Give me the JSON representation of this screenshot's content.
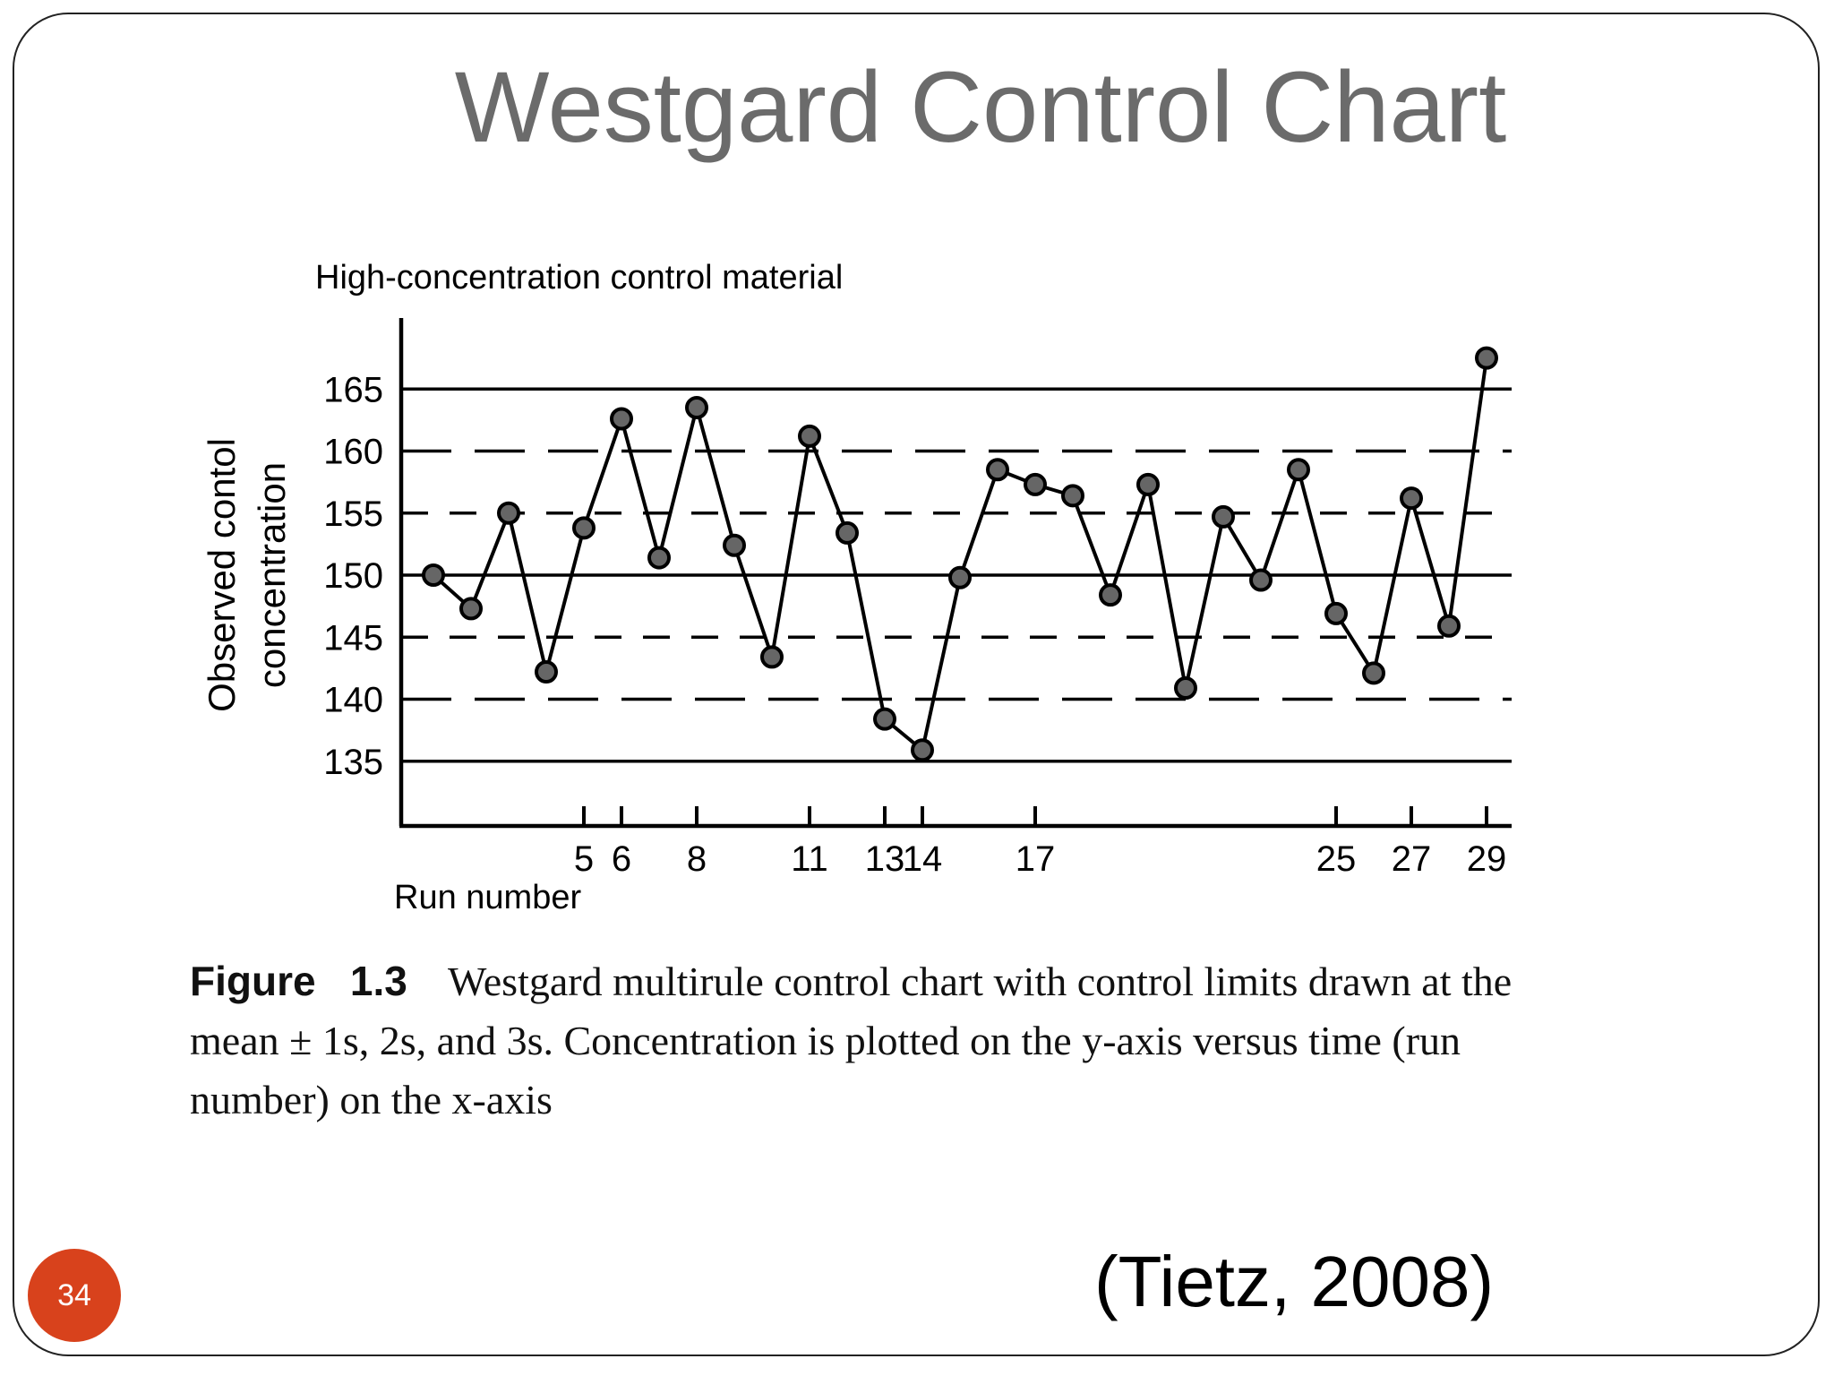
{
  "slide": {
    "title": "Westgard Control Chart",
    "number": "34",
    "citation": "(Tietz, 2008)",
    "accent_color": "#d8421c",
    "title_color": "#6b6b6b"
  },
  "caption": {
    "label": "Figure   1.3",
    "text": "Westgard multirule control chart with control limits drawn at the mean ± 1s, 2s, and 3s. Concentration is plotted on the y-axis versus time (run number) on the x-axis"
  },
  "chart_data": {
    "type": "line",
    "title": "High-concentration control material",
    "ylabel": "Observed contol concentration",
    "xlabel": "Run number",
    "ylim": [
      130,
      170
    ],
    "xlim": [
      0,
      30
    ],
    "yticks": [
      135,
      140,
      145,
      150,
      155,
      160,
      165
    ],
    "xticks": [
      5,
      6,
      8,
      11,
      13,
      14,
      17,
      25,
      27,
      29
    ],
    "x_tick_labels": [
      "5",
      "6",
      "8",
      "11",
      "13",
      "14",
      "17",
      "25",
      "27",
      "29"
    ],
    "mean": 150,
    "control_limits": [
      {
        "value": 165,
        "style": "solid"
      },
      {
        "value": 160,
        "style": "long-dash"
      },
      {
        "value": 155,
        "style": "short-dash"
      },
      {
        "value": 150,
        "style": "solid"
      },
      {
        "value": 145,
        "style": "short-dash"
      },
      {
        "value": 140,
        "style": "long-dash"
      },
      {
        "value": 135,
        "style": "solid"
      }
    ],
    "series": [
      {
        "x": [
          1,
          2,
          3,
          4,
          5,
          6,
          7,
          8,
          9,
          10,
          11,
          12,
          13,
          14,
          15,
          16,
          17,
          18,
          19,
          20,
          21,
          22,
          23,
          24,
          25,
          26,
          27,
          28,
          29
        ],
        "values": [
          150,
          147.3,
          155,
          142.2,
          153.8,
          162.6,
          151.4,
          163.5,
          152.4,
          143.4,
          161.2,
          153.4,
          138.4,
          135.9,
          149.8,
          158.5,
          157.3,
          156.4,
          148.4,
          157.3,
          140.9,
          154.7,
          149.6,
          158.5,
          146.9,
          142.1,
          156.2,
          145.9,
          167.5
        ]
      }
    ]
  }
}
